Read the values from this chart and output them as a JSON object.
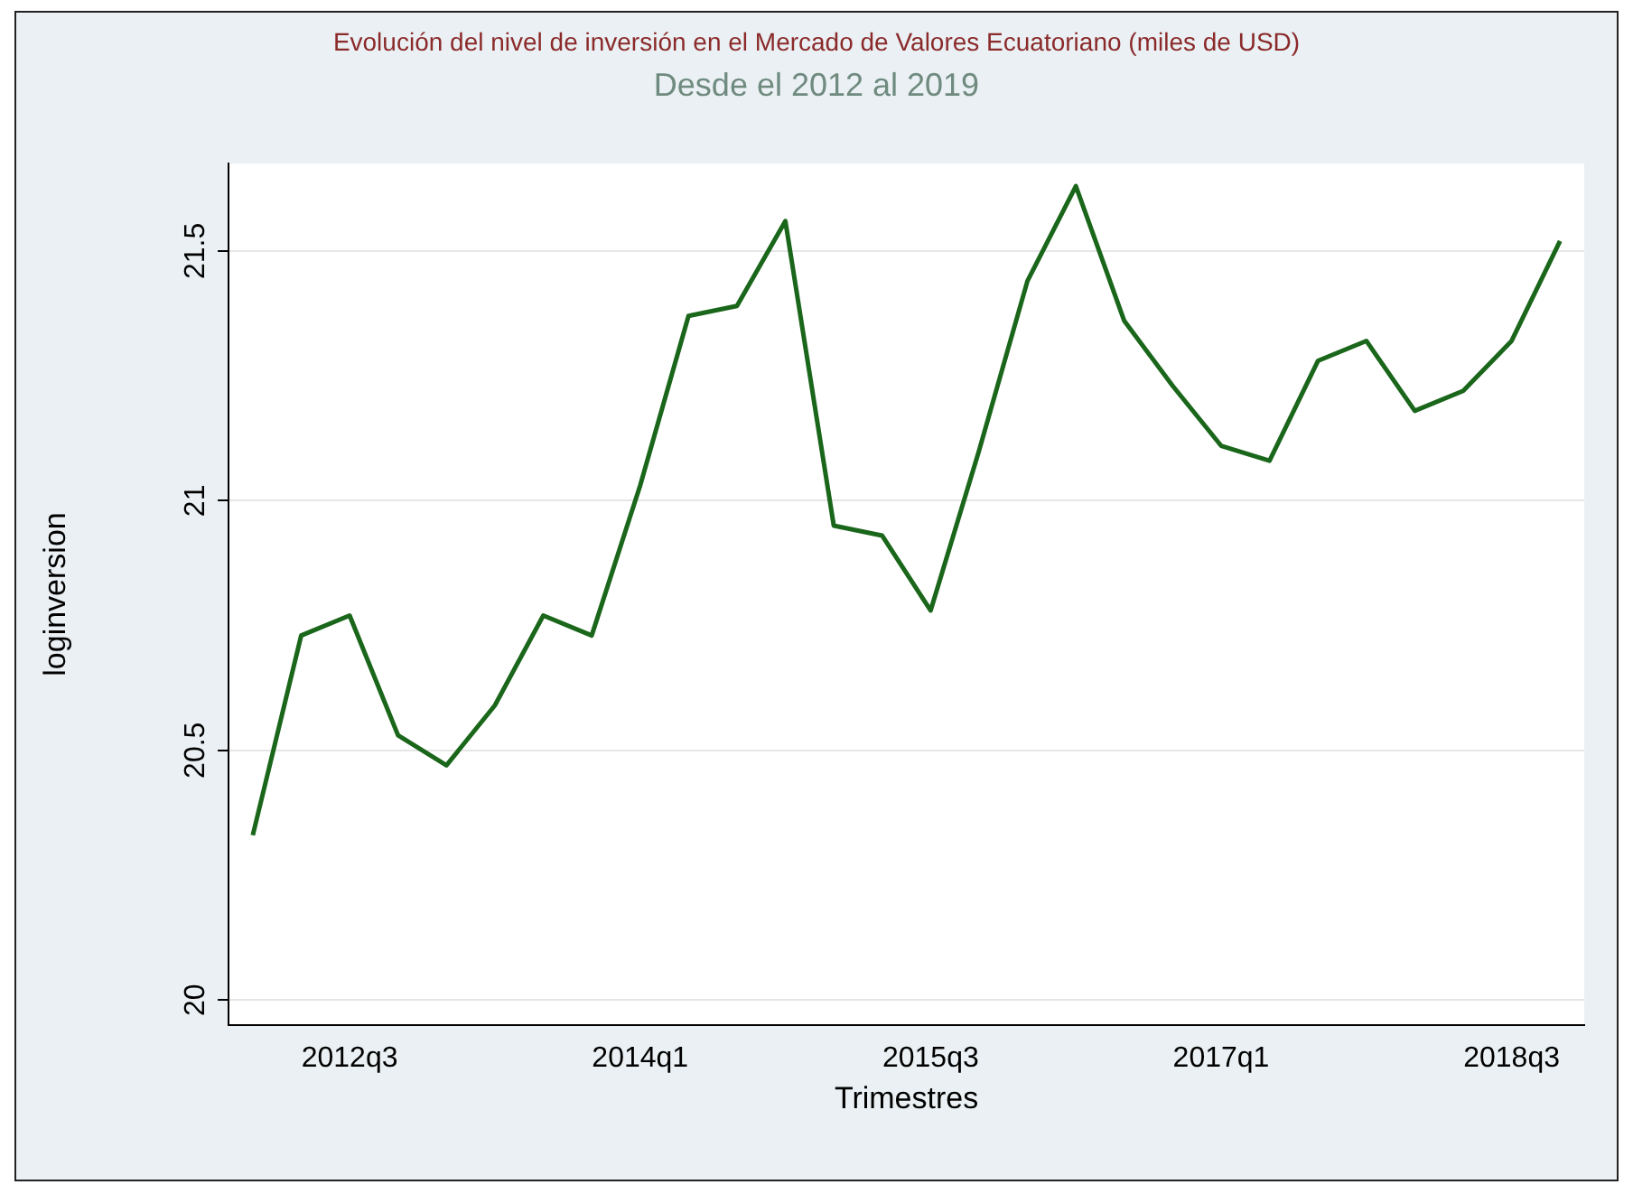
{
  "chart_data": {
    "type": "line",
    "title": "Evolución del nivel de inversión en el Mercado de Valores Ecuatoriano (miles de USD)",
    "subtitle": "Desde el 2012 al 2019",
    "xlabel": "Trimestres",
    "ylabel": "loginversion",
    "categories": [
      null,
      null,
      "2012q3",
      null,
      null,
      null,
      null,
      null,
      "2014q1",
      null,
      null,
      null,
      null,
      null,
      "2015q3",
      null,
      null,
      null,
      null,
      null,
      "2017q1",
      null,
      null,
      null,
      null,
      null,
      "2018q3",
      null
    ],
    "series": [
      {
        "color": "#1a661a",
        "values": [
          20.33,
          20.73,
          20.77,
          20.53,
          20.47,
          20.59,
          20.77,
          20.73,
          21.03,
          21.37,
          21.39,
          21.56,
          20.95,
          20.93,
          20.78,
          21.1,
          21.44,
          21.63,
          21.36,
          21.23,
          21.11,
          21.08,
          21.28,
          21.32,
          21.18,
          21.22,
          21.32,
          21.52
        ]
      }
    ],
    "ylim": [
      19.95,
      21.675
    ],
    "yticks": [
      20,
      20.5,
      21,
      21.5
    ],
    "grid": "y",
    "legend": false,
    "marker": "none",
    "line_style": "solid"
  }
}
